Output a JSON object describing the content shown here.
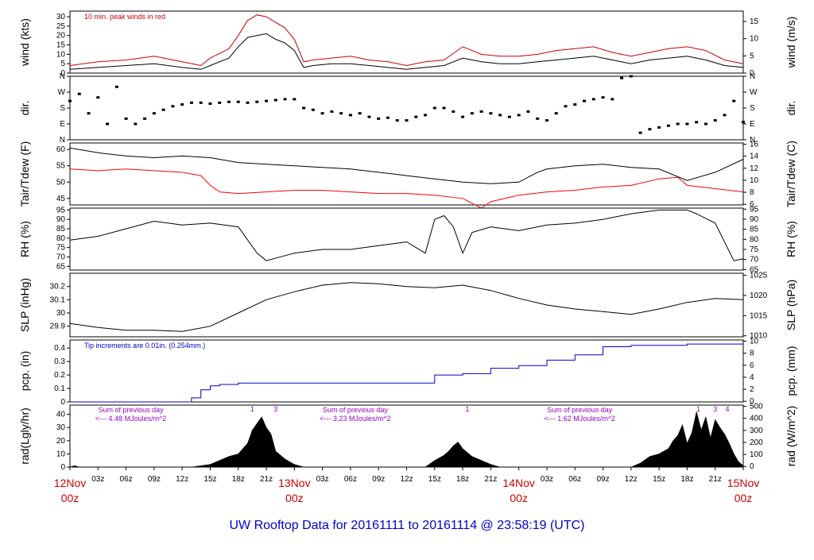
{
  "title": "UW Rooftop Data for 20161111  to  20161114 @ 23:58:19  (UTC)",
  "x_axis": {
    "hour_ticks": [
      "03z",
      "06z",
      "09z",
      "12z",
      "15z",
      "18z",
      "21z"
    ],
    "dates": [
      {
        "day": "12Nov",
        "hour": "00z"
      },
      {
        "day": "13Nov",
        "hour": "00z"
      },
      {
        "day": "14Nov",
        "hour": "00z"
      },
      {
        "day": "15Nov",
        "hour": "00z"
      }
    ]
  },
  "chart_data": [
    {
      "type": "line",
      "name": "wind",
      "ylabel": "wind (kts)",
      "ylabel_right": "wind (m/s)",
      "ylim": [
        0,
        33
      ],
      "yticks": [
        0,
        5,
        10,
        15,
        20,
        25,
        30
      ],
      "right_ticks": [
        0,
        5,
        10,
        15
      ],
      "annotation": "10 min. peak winds in red",
      "series": [
        {
          "color": "#000000",
          "x": [
            0,
            3,
            6,
            9,
            12,
            14,
            15,
            17,
            18,
            19,
            20,
            21,
            22,
            23,
            24,
            25,
            26,
            28,
            30,
            32,
            34,
            36,
            38,
            40,
            42,
            44,
            46,
            48,
            50,
            52,
            54,
            56,
            58,
            60,
            62,
            64,
            66,
            68,
            70,
            72
          ],
          "values": [
            2,
            3,
            4,
            5,
            3,
            2,
            4,
            8,
            14,
            19,
            20,
            21,
            18,
            16,
            12,
            3,
            4,
            5,
            5,
            4,
            3,
            2,
            3,
            4,
            8,
            6,
            5,
            5,
            6,
            7,
            8,
            9,
            7,
            5,
            7,
            8,
            9,
            7,
            4,
            3
          ]
        },
        {
          "color": "#cc0000",
          "x": [
            0,
            3,
            6,
            9,
            12,
            14,
            15,
            17,
            18,
            19,
            20,
            21,
            22,
            23,
            24,
            25,
            26,
            28,
            30,
            32,
            34,
            36,
            38,
            40,
            42,
            44,
            46,
            48,
            50,
            52,
            54,
            56,
            58,
            60,
            62,
            64,
            66,
            68,
            70,
            72
          ],
          "values": [
            4,
            6,
            7,
            9,
            6,
            4,
            8,
            13,
            20,
            28,
            31,
            30,
            27,
            24,
            18,
            6,
            7,
            8,
            9,
            7,
            6,
            4,
            6,
            7,
            14,
            10,
            9,
            9,
            10,
            12,
            13,
            14,
            11,
            9,
            11,
            13,
            14,
            12,
            7,
            5
          ]
        }
      ]
    },
    {
      "type": "scatter",
      "name": "dir",
      "ylabel": "dir.",
      "ylabel_right": "dir.",
      "ylim": [
        0,
        360
      ],
      "ytick_labels": [
        "N",
        "E",
        "S",
        "W",
        "N"
      ],
      "series": [
        {
          "color": "#000000",
          "x": [
            0,
            1,
            2,
            3,
            4,
            5,
            6,
            7,
            8,
            9,
            10,
            11,
            12,
            13,
            14,
            15,
            16,
            17,
            18,
            19,
            20,
            21,
            22,
            23,
            24,
            25,
            26,
            27,
            28,
            29,
            30,
            31,
            32,
            33,
            34,
            35,
            36,
            37,
            38,
            39,
            40,
            41,
            42,
            43,
            44,
            45,
            46,
            47,
            48,
            49,
            50,
            51,
            52,
            53,
            54,
            55,
            56,
            57,
            58,
            59,
            60,
            61,
            62,
            63,
            64,
            65,
            66,
            67,
            68,
            69,
            70,
            71,
            72
          ],
          "values": [
            220,
            260,
            150,
            240,
            90,
            300,
            120,
            90,
            120,
            150,
            170,
            190,
            200,
            210,
            210,
            205,
            210,
            215,
            215,
            210,
            215,
            220,
            225,
            230,
            230,
            180,
            170,
            150,
            160,
            150,
            140,
            150,
            130,
            120,
            125,
            110,
            110,
            130,
            140,
            180,
            180,
            160,
            130,
            150,
            160,
            150,
            140,
            130,
            140,
            160,
            120,
            110,
            150,
            190,
            200,
            220,
            230,
            240,
            230,
            350,
            360,
            40,
            60,
            70,
            80,
            90,
            90,
            100,
            90,
            110,
            140,
            220,
            100
          ]
        }
      ]
    },
    {
      "type": "line",
      "name": "temp",
      "ylabel": "Tair/Tdew (F)",
      "ylabel_right": "Tair/Tdew (C)",
      "ylim": [
        43,
        62
      ],
      "yticks": [
        45,
        50,
        55,
        60
      ],
      "right_ticks": [
        6,
        8,
        10,
        12,
        14,
        16
      ],
      "series": [
        {
          "color": "#000000",
          "x": [
            0,
            3,
            6,
            9,
            12,
            15,
            18,
            21,
            24,
            27,
            30,
            33,
            36,
            39,
            42,
            45,
            48,
            50,
            51,
            54,
            57,
            60,
            63,
            66,
            69,
            72
          ],
          "values": [
            60.5,
            59,
            58,
            57.5,
            58,
            57.5,
            56,
            55.5,
            55,
            54.5,
            54,
            53,
            52,
            51,
            50,
            49.5,
            50,
            53,
            54,
            55,
            55.5,
            54.5,
            54,
            50.5,
            53,
            57
          ]
        },
        {
          "color": "#ff0000",
          "x": [
            0,
            3,
            6,
            9,
            12,
            14,
            15,
            16,
            18,
            21,
            24,
            27,
            30,
            33,
            36,
            39,
            42,
            44,
            45,
            48,
            51,
            54,
            57,
            60,
            63,
            65,
            66,
            69,
            72
          ],
          "values": [
            54,
            53.5,
            54,
            53.5,
            53,
            52,
            49,
            47,
            46.5,
            47,
            47.5,
            47.5,
            47,
            46.5,
            46.5,
            46,
            45,
            42,
            44,
            46,
            47,
            47.5,
            48.5,
            49,
            51,
            51.5,
            49,
            48,
            47
          ]
        }
      ]
    },
    {
      "type": "line",
      "name": "rh",
      "ylabel": "RH (%)",
      "ylabel_right": "RH (%)",
      "ylim": [
        63,
        96
      ],
      "yticks": [
        65,
        70,
        75,
        80,
        85,
        90,
        95
      ],
      "right_ticks": [
        65,
        70,
        75,
        80,
        85,
        90,
        95
      ],
      "series": [
        {
          "color": "#000000",
          "x": [
            0,
            3,
            6,
            9,
            12,
            15,
            18,
            20,
            21,
            24,
            27,
            30,
            33,
            36,
            38,
            39,
            40,
            41,
            42,
            43,
            45,
            48,
            51,
            54,
            57,
            60,
            63,
            66,
            67,
            69,
            71,
            72
          ],
          "values": [
            79,
            81,
            85,
            89,
            87,
            88,
            86,
            72,
            68,
            72,
            74,
            74,
            76,
            78,
            72,
            90,
            92,
            86,
            72,
            83,
            86,
            84,
            87,
            88,
            90,
            93,
            95,
            95,
            93,
            88,
            68,
            69
          ]
        }
      ]
    },
    {
      "type": "line",
      "name": "slp",
      "ylabel": "SLP (inHg)",
      "ylabel_right": "SLP (hPa)",
      "ylim": [
        29.82,
        30.3
      ],
      "yticks": [
        29.9,
        30.0,
        30.1,
        30.2
      ],
      "right_ticks": [
        1010,
        1015,
        1020,
        1025
      ],
      "series": [
        {
          "color": "#000000",
          "x": [
            0,
            3,
            6,
            9,
            12,
            15,
            18,
            21,
            24,
            27,
            30,
            33,
            36,
            39,
            42,
            45,
            48,
            51,
            54,
            57,
            60,
            63,
            66,
            69,
            72
          ],
          "values": [
            29.92,
            29.89,
            29.87,
            29.87,
            29.86,
            29.9,
            30.0,
            30.1,
            30.16,
            30.21,
            30.23,
            30.22,
            30.2,
            30.19,
            30.21,
            30.17,
            30.11,
            30.06,
            30.03,
            30.01,
            29.99,
            30.03,
            30.08,
            30.11,
            30.1
          ]
        }
      ]
    },
    {
      "type": "line",
      "name": "pcp",
      "ylabel": "pcp. (in)",
      "ylabel_right": "pcp. (mm)",
      "ylim": [
        0,
        0.46
      ],
      "yticks": [
        0.0,
        0.1,
        0.2,
        0.3,
        0.4
      ],
      "right_ticks": [
        0,
        2,
        4,
        6,
        8,
        10
      ],
      "annotation": "Tip increments are 0.01in. (0.254mm.)",
      "series": [
        {
          "color": "#0000cc",
          "x": [
            0,
            3,
            6,
            9,
            12,
            13,
            14,
            15,
            16,
            18,
            21,
            24,
            27,
            30,
            33,
            36,
            38,
            39,
            42,
            45,
            48,
            51,
            54,
            57,
            60,
            63,
            66,
            69,
            72
          ],
          "values": [
            0,
            0,
            0,
            0,
            0,
            0.03,
            0.09,
            0.12,
            0.13,
            0.14,
            0.14,
            0.14,
            0.14,
            0.14,
            0.14,
            0.14,
            0.14,
            0.2,
            0.21,
            0.25,
            0.27,
            0.31,
            0.35,
            0.41,
            0.42,
            0.42,
            0.43,
            0.43,
            0.43
          ]
        }
      ]
    },
    {
      "type": "area",
      "name": "rad",
      "ylabel": "rad(Lgly/hr)",
      "ylabel_right": "rad (W/m^2)",
      "ylim": [
        0,
        47
      ],
      "yticks": [
        0,
        10,
        20,
        30,
        40
      ],
      "right_ticks": [
        0,
        100,
        200,
        300,
        400,
        500
      ],
      "annotations": [
        {
          "line1": "Sum of previous day",
          "line2": "<--- 4.48 MJoules/m^2",
          "x": 6
        },
        {
          "line1": "Sum of previous day",
          "line2": "<--- 3.23 MJoules/m^2",
          "x": 30
        },
        {
          "line1": "Sum of previous day",
          "line2": "<--- 1.62 MJoules/m^2",
          "x": 54
        }
      ],
      "markers": [
        {
          "label": "1",
          "x": 19.5
        },
        {
          "label": "3",
          "x": 22
        },
        {
          "label": "1",
          "x": 42.5
        },
        {
          "label": "1",
          "x": 67.2
        },
        {
          "label": "3",
          "x": 69
        },
        {
          "label": "4",
          "x": 70.3
        }
      ],
      "series": [
        {
          "color": "#000000",
          "x": [
            0,
            0.5,
            1,
            13,
            15,
            16,
            17,
            18,
            19,
            19.5,
            20,
            20.5,
            21,
            21.5,
            22,
            23,
            24,
            25,
            38,
            39,
            40,
            40.5,
            41,
            41.5,
            42,
            43,
            44,
            45,
            46,
            60,
            61,
            62,
            63,
            64,
            64.5,
            65,
            65.5,
            66,
            66.5,
            67,
            67.5,
            68,
            68.5,
            69,
            69.5,
            70,
            70.5,
            71,
            71.5,
            72
          ],
          "values": [
            0,
            1,
            0,
            0,
            2,
            5,
            8,
            10,
            18,
            28,
            33,
            38,
            30,
            25,
            12,
            6,
            2,
            0,
            0,
            5,
            9,
            12,
            16,
            19,
            14,
            8,
            5,
            2,
            0,
            0,
            3,
            8,
            10,
            14,
            20,
            24,
            32,
            18,
            26,
            42,
            28,
            38,
            22,
            36,
            30,
            25,
            18,
            10,
            4,
            1
          ]
        }
      ]
    }
  ]
}
